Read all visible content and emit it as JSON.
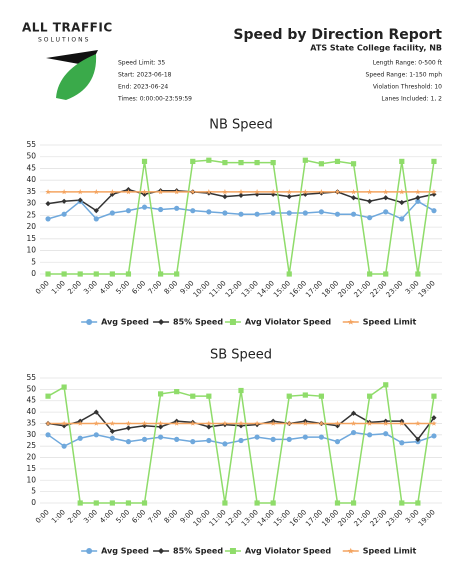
{
  "header": {
    "logo": "ALL TRAFFIC",
    "logo_sub": "SOLUTIONS",
    "title": "Speed by Direction Report",
    "subtitle": "ATS State College facility, NB",
    "left": [
      "Speed Limit: 35",
      "Start: 2023-06-18",
      "End: 2023-06-24",
      "Times: 0:00:00-23:59:59"
    ],
    "right": [
      "Length Range: 0-500 ft",
      "Speed Range: 1-150 mph",
      "Violation Threshold: 10",
      "Lanes Included: 1, 2"
    ]
  },
  "chart_data": [
    {
      "type": "line",
      "title": "NB Speed",
      "categories": [
        "0:00",
        "1:00",
        "2:00",
        "3:00",
        "4:00",
        "5:00",
        "6:00",
        "7:00",
        "8:00",
        "9:00",
        "10:00",
        "11:00",
        "12:00",
        "13:00",
        "14:00",
        "15:00",
        "16:00",
        "17:00",
        "18:00",
        "20:00",
        "21:00",
        "22:00",
        "23:00",
        "3:00",
        "19:00"
      ],
      "ylim": [
        0,
        55
      ],
      "yticks": [
        0,
        5,
        10,
        15,
        20,
        25,
        30,
        35,
        40,
        45,
        50,
        55
      ],
      "grid": true,
      "series": [
        {
          "name": "Avg Speed",
          "color": "#6fa8dc",
          "marker": "circle",
          "values": [
            23.5,
            25.5,
            31,
            23.5,
            26,
            27,
            28.5,
            27.5,
            28,
            27,
            26.5,
            26,
            25.5,
            25.5,
            26,
            26,
            26,
            26.5,
            25.5,
            25.5,
            24,
            26.5,
            23.5,
            31,
            27
          ]
        },
        {
          "name": "85% Speed",
          "color": "#333333",
          "marker": "diamond",
          "values": [
            30,
            31,
            31.5,
            27,
            34,
            36,
            34,
            35.5,
            35.5,
            35,
            34.5,
            33,
            33.5,
            34,
            34,
            33,
            34,
            34.5,
            35,
            32.5,
            31,
            32.5,
            30.5,
            32.5,
            34
          ]
        },
        {
          "name": "Avg Violator Speed",
          "color": "#8fdc6a",
          "marker": "square",
          "values": [
            0,
            0,
            0,
            0,
            0,
            0,
            48,
            0,
            0,
            48,
            48.5,
            47.5,
            47.5,
            47.5,
            47.5,
            0,
            48.5,
            47,
            48,
            47,
            0,
            0,
            48,
            0,
            48
          ]
        },
        {
          "name": "Speed Limit",
          "color": "#f4a460",
          "marker": "star",
          "values": [
            35,
            35,
            35,
            35,
            35,
            35,
            35,
            35,
            35,
            35,
            35,
            35,
            35,
            35,
            35,
            35,
            35,
            35,
            35,
            35,
            35,
            35,
            35,
            35,
            35
          ]
        }
      ]
    },
    {
      "type": "line",
      "title": "SB Speed",
      "categories": [
        "0:00",
        "1:00",
        "2:00",
        "3:00",
        "4:00",
        "5:00",
        "6:00",
        "7:00",
        "8:00",
        "9:00",
        "10:00",
        "11:00",
        "12:00",
        "13:00",
        "14:00",
        "15:00",
        "16:00",
        "17:00",
        "18:00",
        "20:00",
        "21:00",
        "22:00",
        "23:00",
        "3:00",
        "19:00"
      ],
      "ylim": [
        0,
        55
      ],
      "yticks": [
        0,
        5,
        10,
        15,
        20,
        25,
        30,
        35,
        40,
        45,
        50,
        55
      ],
      "grid": true,
      "series": [
        {
          "name": "Avg Speed",
          "color": "#6fa8dc",
          "marker": "circle",
          "values": [
            30,
            25,
            28.5,
            30,
            28.5,
            27,
            28,
            29,
            28,
            27,
            27.5,
            26,
            27.5,
            29,
            28,
            28,
            29,
            29,
            27,
            31,
            30,
            30.5,
            26.5,
            27,
            29.5
          ]
        },
        {
          "name": "85% Speed",
          "color": "#333333",
          "marker": "diamond",
          "values": [
            35,
            34,
            36,
            40,
            31.5,
            33,
            34,
            33.5,
            36,
            35.5,
            33.5,
            34.5,
            34,
            34.5,
            36,
            35,
            36,
            35,
            34,
            39.5,
            35.5,
            36,
            36,
            28,
            37.5
          ]
        },
        {
          "name": "Avg Violator Speed",
          "color": "#8fdc6a",
          "marker": "square",
          "values": [
            47,
            51,
            0,
            0,
            0,
            0,
            0,
            48,
            49,
            47,
            47,
            0,
            49.5,
            0,
            0,
            47,
            47.5,
            47,
            0,
            0,
            47,
            52,
            0,
            0,
            47
          ]
        },
        {
          "name": "Speed Limit",
          "color": "#f4a460",
          "marker": "star",
          "values": [
            35,
            35,
            35,
            35,
            35,
            35,
            35,
            35,
            35,
            35,
            35,
            35,
            35,
            35,
            35,
            35,
            35,
            35,
            35,
            35,
            35,
            35,
            35,
            35,
            35
          ]
        }
      ]
    }
  ]
}
